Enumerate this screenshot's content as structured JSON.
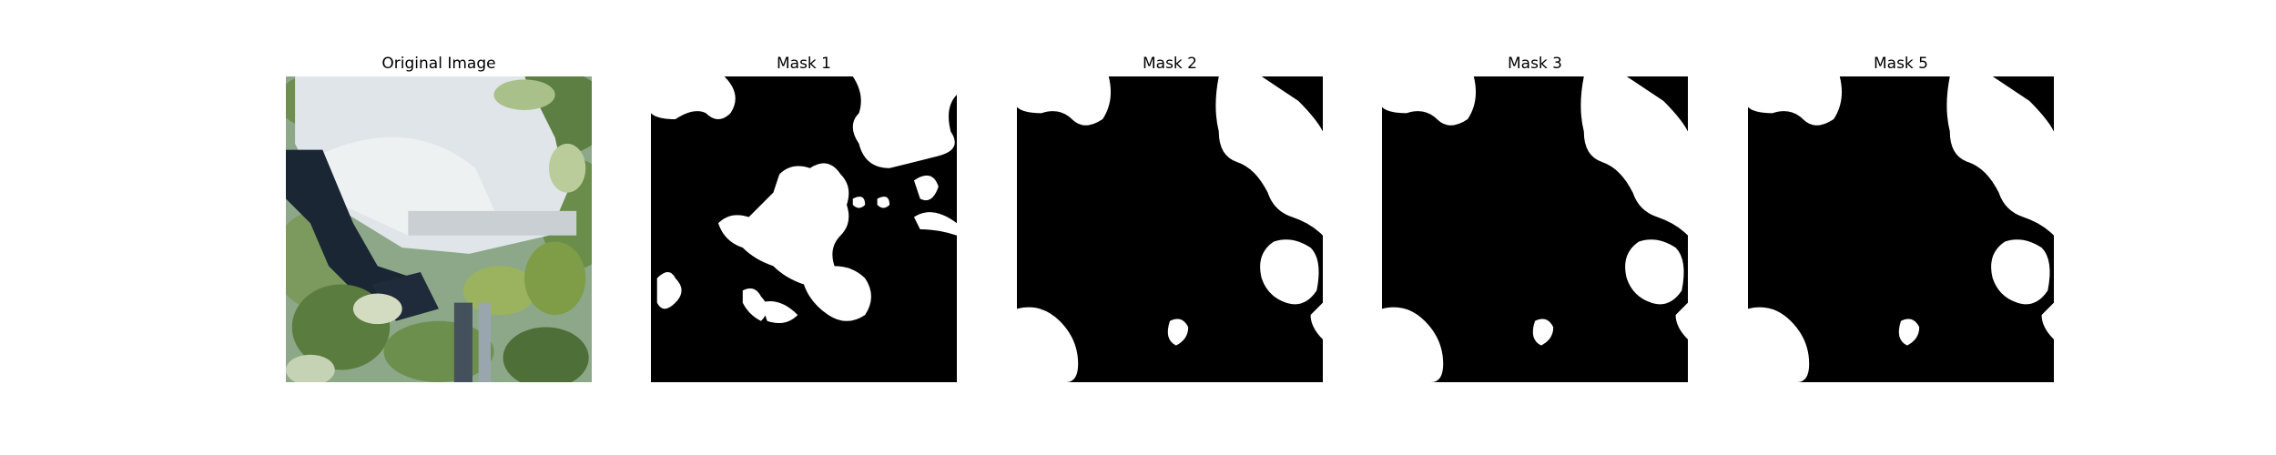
{
  "figure": {
    "background": "#ffffff",
    "panels": [
      {
        "title": "Original Image",
        "kind": "photo"
      },
      {
        "title": "Mask 1",
        "kind": "mask",
        "mask_variant": "scattered-blobs"
      },
      {
        "title": "Mask 2",
        "kind": "mask",
        "mask_variant": "leaf-outline"
      },
      {
        "title": "Mask 3",
        "kind": "mask",
        "mask_variant": "leaf-outline"
      },
      {
        "title": "Mask 5",
        "kind": "mask",
        "mask_variant": "leaf-outline"
      }
    ]
  },
  "colors": {
    "mask_foreground": "#ffffff",
    "mask_background": "#000000",
    "leaf_green": "#5f8a3c",
    "lamp_white": "#e3e8ea",
    "dark_stripe": "#1b2634"
  }
}
